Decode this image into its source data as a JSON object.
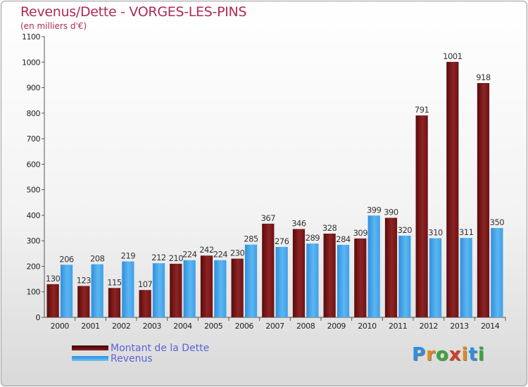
{
  "title": "Revenus/Dette - VORGES-LES-PINS",
  "subtitle": "(en milliers d'€)",
  "brand": "Proxiti",
  "chart_data": {
    "type": "bar",
    "categories": [
      "2000",
      "2001",
      "2002",
      "2003",
      "2004",
      "2005",
      "2006",
      "2007",
      "2008",
      "2009",
      "2010",
      "2011",
      "2012",
      "2013",
      "2014"
    ],
    "series": [
      {
        "name": "Montant de la Dette",
        "color": "#8b1a1a",
        "values": [
          130,
          123,
          115,
          107,
          210,
          242,
          230,
          367,
          346,
          328,
          309,
          390,
          791,
          1001,
          918
        ]
      },
      {
        "name": "Revenus",
        "color": "#4aa8ea",
        "values": [
          206,
          208,
          219,
          212,
          224,
          224,
          285,
          276,
          289,
          284,
          399,
          320,
          310,
          311,
          350
        ]
      }
    ],
    "ylim": [
      0,
      1100
    ],
    "yticks": [
      0,
      100,
      200,
      300,
      400,
      500,
      600,
      700,
      800,
      900,
      1000,
      1100
    ],
    "grid": false,
    "legend_position": "bottom-left",
    "xlabel": "",
    "ylabel": ""
  }
}
